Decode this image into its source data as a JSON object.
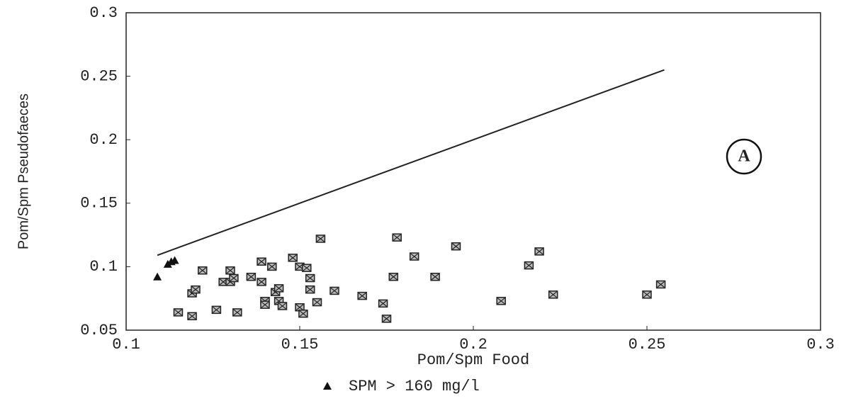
{
  "chart_data": {
    "type": "scatter",
    "x_label": "Pom/Spm Food",
    "y_label": "Pom/Spm Pseudofaeces",
    "annotation": "A",
    "xlim": [
      0.1,
      0.3
    ],
    "xticks": [
      0.1,
      0.15,
      0.2,
      0.25,
      0.3
    ],
    "ylim": [
      0.05,
      0.3
    ],
    "yticks": [
      0.05,
      0.1,
      0.15,
      0.2,
      0.25,
      0.3
    ],
    "reference_line": {
      "x": [
        0.109,
        0.255
      ],
      "values": [
        0.109,
        0.255
      ],
      "color": "#222222"
    },
    "series": [
      {
        "marker": "square",
        "color": "#222222",
        "x": [
          0.115,
          0.119,
          0.12,
          0.119,
          0.122,
          0.126,
          0.128,
          0.13,
          0.13,
          0.131,
          0.132,
          0.136,
          0.139,
          0.139,
          0.14,
          0.14,
          0.142,
          0.143,
          0.144,
          0.144,
          0.145,
          0.148,
          0.15,
          0.152,
          0.15,
          0.151,
          0.153,
          0.153,
          0.155,
          0.156,
          0.16,
          0.168,
          0.174,
          0.175,
          0.177,
          0.178,
          0.183,
          0.189,
          0.195,
          0.208,
          0.216,
          0.219,
          0.223,
          0.25,
          0.254
        ],
        "values": [
          0.064,
          0.079,
          0.082,
          0.061,
          0.097,
          0.066,
          0.088,
          0.097,
          0.088,
          0.091,
          0.064,
          0.092,
          0.088,
          0.104,
          0.073,
          0.07,
          0.1,
          0.08,
          0.073,
          0.083,
          0.069,
          0.107,
          0.1,
          0.099,
          0.068,
          0.063,
          0.091,
          0.082,
          0.072,
          0.122,
          0.081,
          0.077,
          0.071,
          0.059,
          0.092,
          0.123,
          0.108,
          0.092,
          0.116,
          0.073,
          0.101,
          0.112,
          0.078,
          0.078,
          0.086
        ]
      },
      {
        "name": "SPM > 160 mg/l",
        "marker": "triangle",
        "color": "#111111",
        "x": [
          0.109,
          0.112,
          0.113,
          0.114
        ],
        "values": [
          0.092,
          0.102,
          0.104,
          0.105
        ]
      }
    ]
  }
}
